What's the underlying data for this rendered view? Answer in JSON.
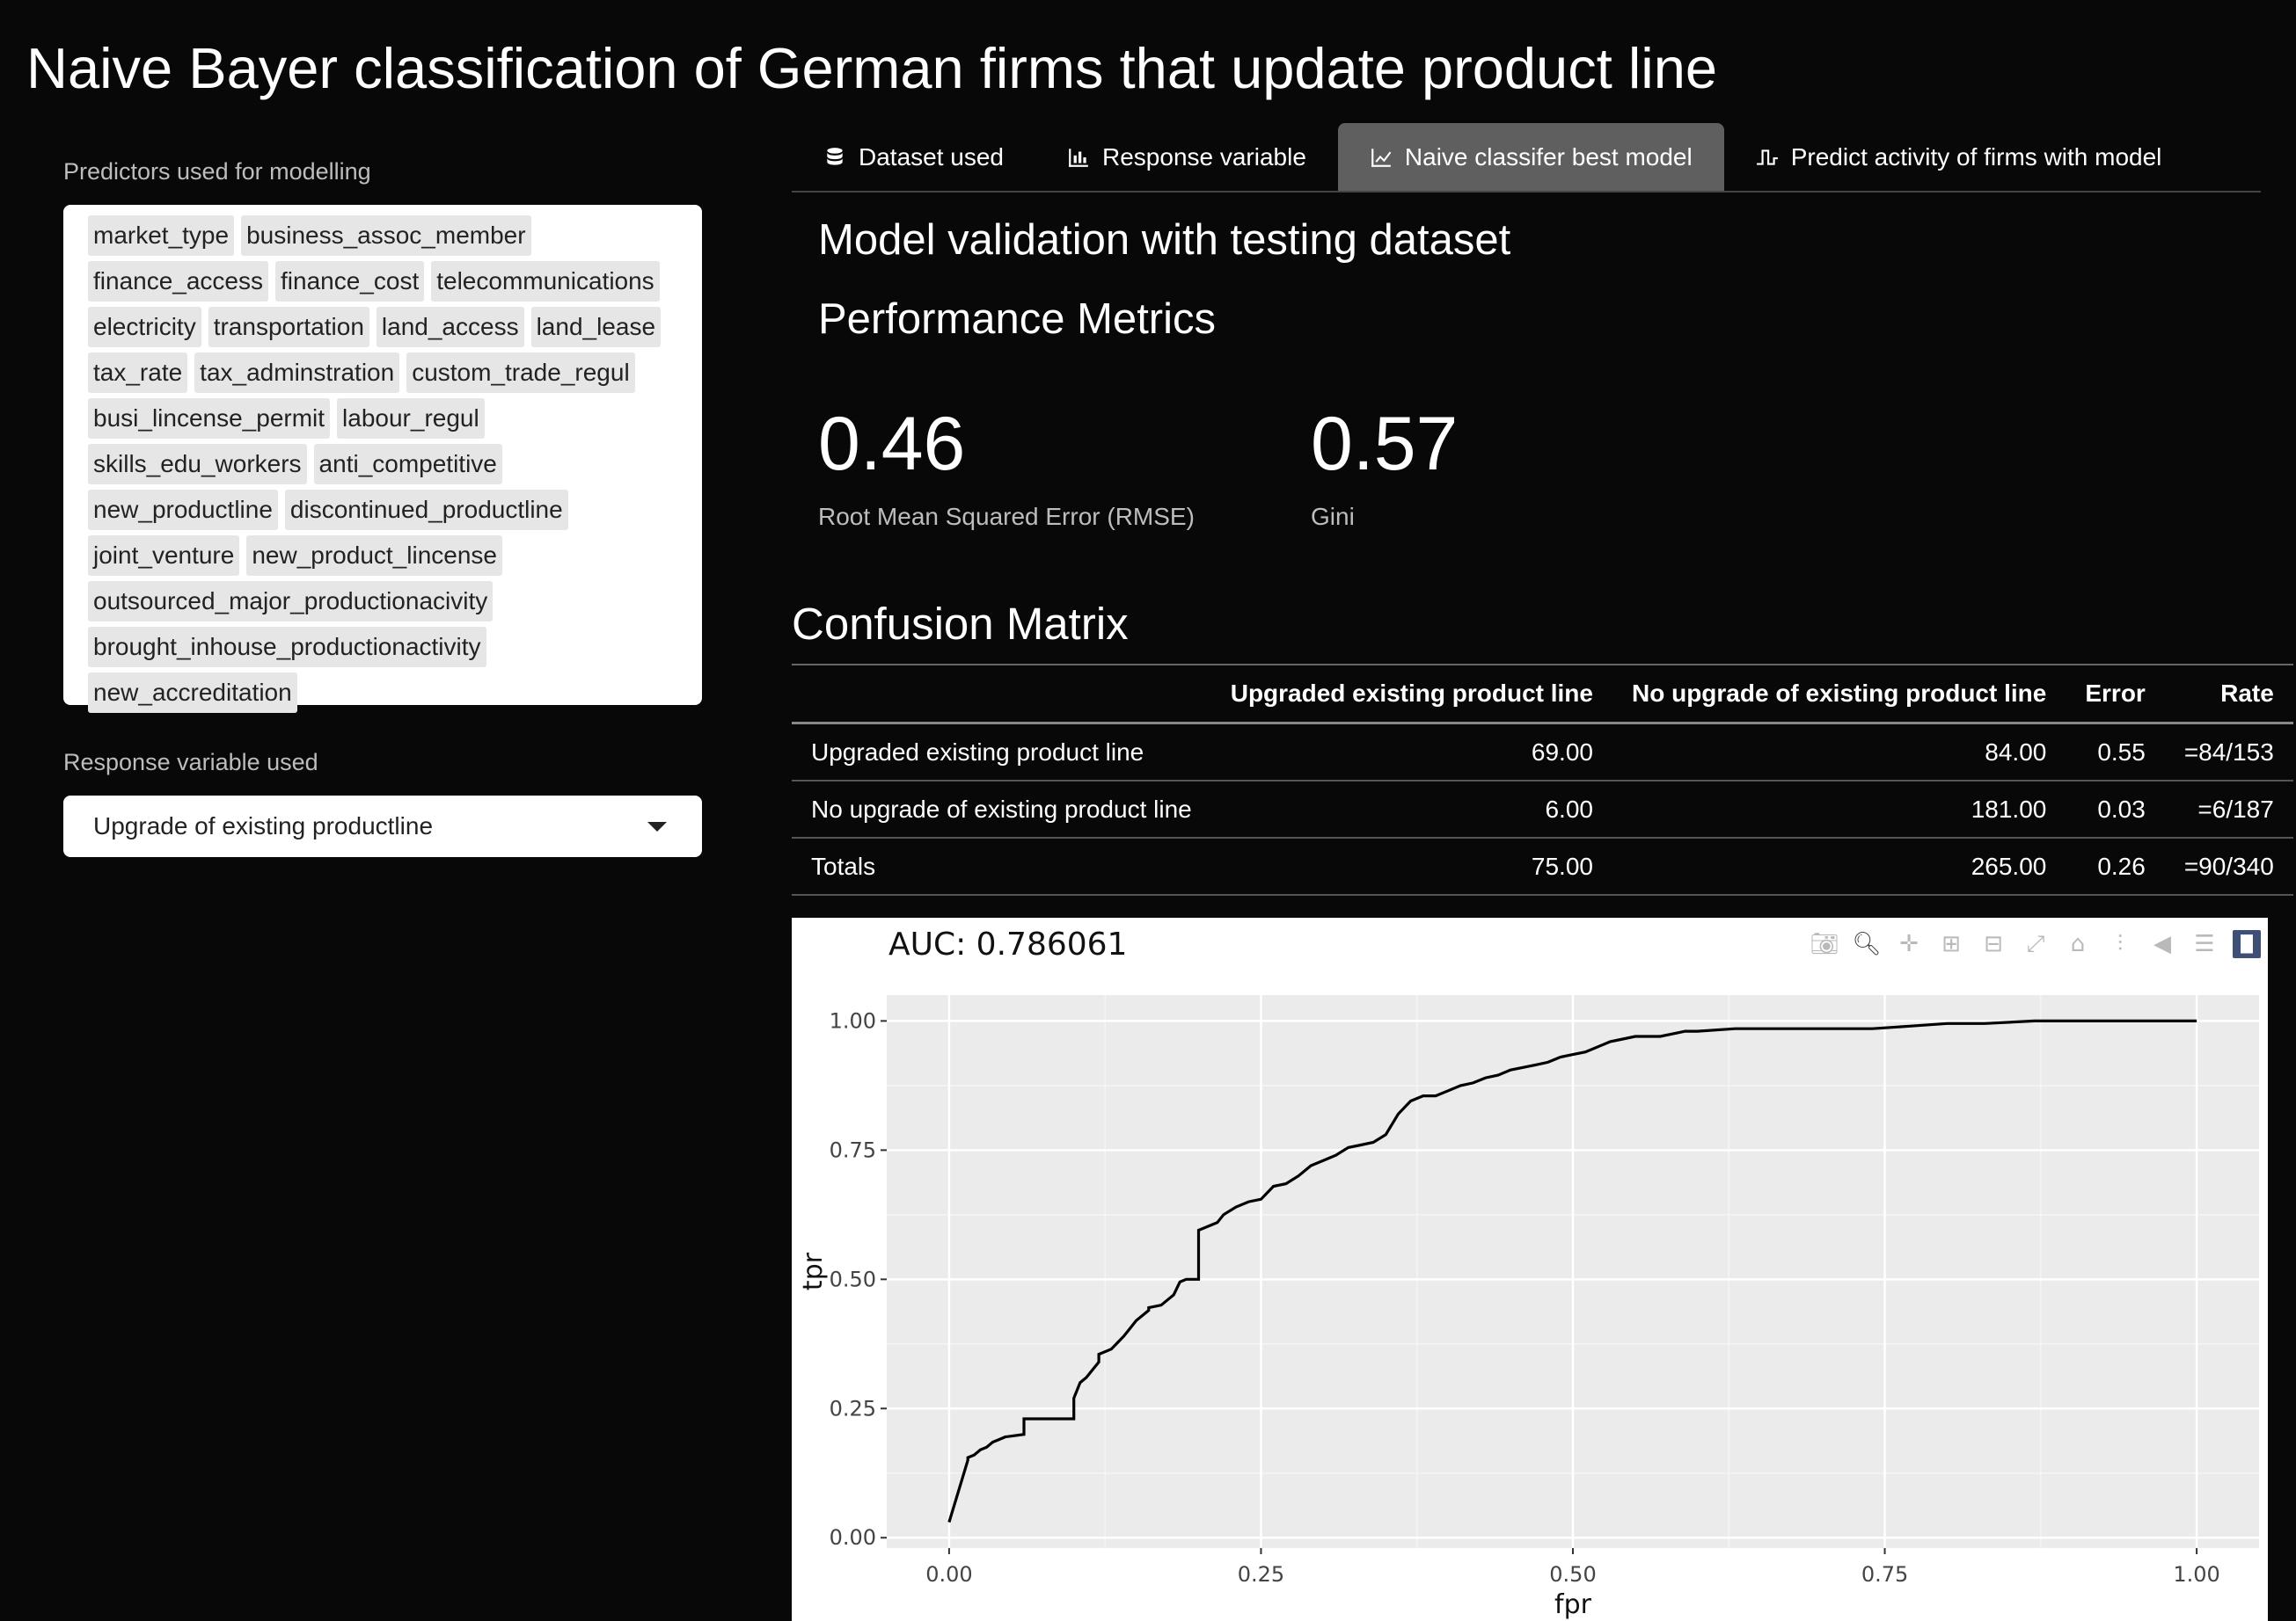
{
  "app": {
    "title": "Naive Bayer classification of German firms that update product line"
  },
  "sidebar": {
    "predictors_label": "Predictors used for modelling",
    "predictors": [
      "market_type",
      "business_assoc_member",
      "finance_access",
      "finance_cost",
      "telecommunications",
      "electricity",
      "transportation",
      "land_access",
      "land_lease",
      "tax_rate",
      "tax_adminstration",
      "custom_trade_regul",
      "busi_lincense_permit",
      "labour_regul",
      "skills_edu_workers",
      "anti_competitive",
      "new_productline",
      "discontinued_productline",
      "joint_venture",
      "new_product_lincense",
      "outsourced_major_productionacivity",
      "brought_inhouse_productionactivity",
      "new_accreditation"
    ],
    "response_label": "Response variable used",
    "response_value": "Upgrade of existing productline"
  },
  "tabs": [
    {
      "label": "Dataset used",
      "icon": "database-icon",
      "active": false
    },
    {
      "label": "Response variable",
      "icon": "bar-chart-icon",
      "active": false
    },
    {
      "label": "Naive classifer best model",
      "icon": "line-chart-icon",
      "active": true
    },
    {
      "label": "Predict activity of firms with model",
      "icon": "step-wave-icon",
      "active": false
    }
  ],
  "main": {
    "validation_title": "Model validation with testing dataset",
    "metrics_title": "Performance Metrics",
    "metrics": [
      {
        "value": "0.46",
        "label": "Root Mean Squared Error (RMSE)"
      },
      {
        "value": "0.57",
        "label": "Gini"
      }
    ],
    "confusion_title": "Confusion Matrix",
    "confusion": {
      "headers": [
        "",
        "Upgraded existing product line",
        "No upgrade of existing product line",
        "Error",
        "Rate"
      ],
      "rows": [
        [
          "Upgraded existing product line",
          "69.00",
          "84.00",
          "0.55",
          "=84/153"
        ],
        [
          "No upgrade of existing product line",
          "6.00",
          "181.00",
          "0.03",
          "=6/187"
        ],
        [
          "Totals",
          "75.00",
          "265.00",
          "0.26",
          "=90/340"
        ]
      ]
    }
  },
  "modebar": [
    "camera-icon",
    "zoom-icon",
    "pan-icon",
    "zoom-in-icon",
    "zoom-out-icon",
    "autoscale-icon",
    "home-icon",
    "spike-lines-icon",
    "hover-closest-icon",
    "hover-compare-icon",
    "plotly-logo-icon"
  ],
  "chart_data": {
    "type": "line",
    "title": "AUC: 0.786061",
    "xlabel": "fpr",
    "ylabel": "tpr",
    "xlim": [
      -0.05,
      1.05
    ],
    "ylim": [
      -0.02,
      1.05
    ],
    "x_ticks": [
      "0.00",
      "0.25",
      "0.50",
      "0.75",
      "1.00"
    ],
    "y_ticks": [
      "0.00",
      "0.25",
      "0.50",
      "0.75",
      "1.00"
    ],
    "grid": true,
    "series": [
      {
        "color": "#000000",
        "x": [
          0.0,
          0.015,
          0.015,
          0.02,
          0.025,
          0.03,
          0.035,
          0.04,
          0.045,
          0.06,
          0.06,
          0.1,
          0.1,
          0.105,
          0.11,
          0.12,
          0.12,
          0.13,
          0.14,
          0.145,
          0.15,
          0.16,
          0.16,
          0.17,
          0.175,
          0.18,
          0.185,
          0.19,
          0.2,
          0.2,
          0.21,
          0.215,
          0.22,
          0.23,
          0.24,
          0.25,
          0.26,
          0.27,
          0.28,
          0.29,
          0.3,
          0.31,
          0.32,
          0.33,
          0.34,
          0.35,
          0.36,
          0.37,
          0.38,
          0.39,
          0.4,
          0.41,
          0.42,
          0.43,
          0.44,
          0.45,
          0.46,
          0.47,
          0.48,
          0.49,
          0.5,
          0.51,
          0.52,
          0.53,
          0.54,
          0.55,
          0.57,
          0.58,
          0.59,
          0.6,
          0.63,
          0.66,
          0.7,
          0.74,
          0.77,
          0.8,
          0.83,
          0.87,
          0.9,
          1.0
        ],
        "y": [
          0.03,
          0.15,
          0.155,
          0.16,
          0.17,
          0.175,
          0.185,
          0.19,
          0.195,
          0.2,
          0.23,
          0.23,
          0.27,
          0.3,
          0.31,
          0.34,
          0.355,
          0.365,
          0.39,
          0.405,
          0.42,
          0.44,
          0.445,
          0.45,
          0.46,
          0.47,
          0.495,
          0.5,
          0.5,
          0.595,
          0.605,
          0.61,
          0.625,
          0.64,
          0.65,
          0.655,
          0.68,
          0.685,
          0.7,
          0.72,
          0.73,
          0.74,
          0.755,
          0.76,
          0.765,
          0.78,
          0.82,
          0.845,
          0.855,
          0.855,
          0.865,
          0.875,
          0.88,
          0.89,
          0.895,
          0.905,
          0.91,
          0.915,
          0.92,
          0.93,
          0.935,
          0.94,
          0.95,
          0.96,
          0.965,
          0.97,
          0.97,
          0.975,
          0.98,
          0.98,
          0.985,
          0.985,
          0.985,
          0.985,
          0.99,
          0.995,
          0.995,
          1.0,
          1.0,
          1.0
        ]
      }
    ]
  }
}
